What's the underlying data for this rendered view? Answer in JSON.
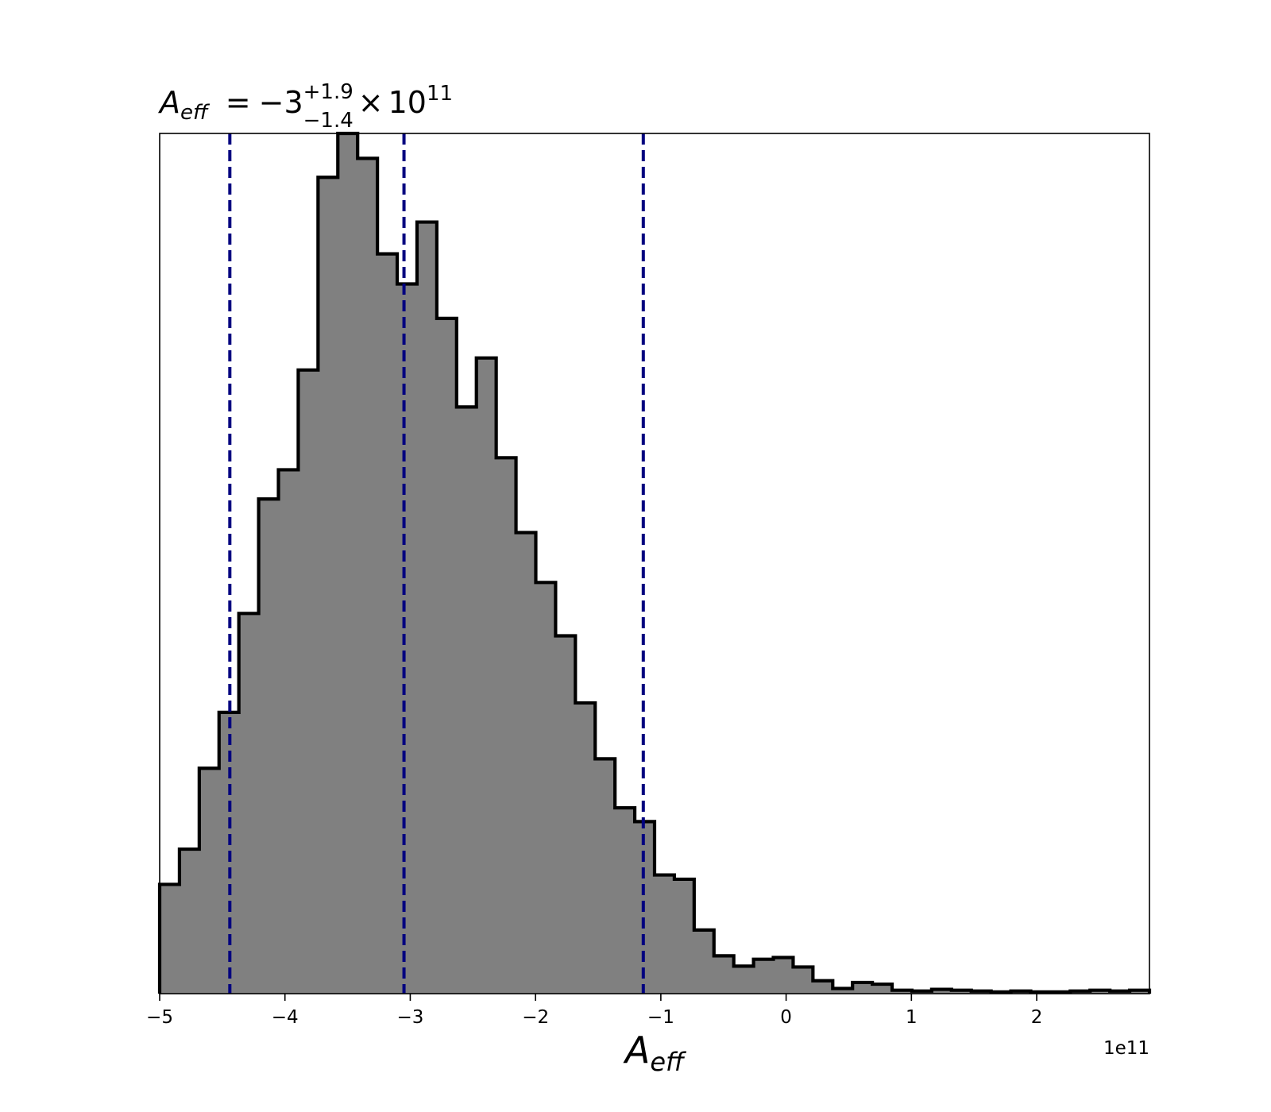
{
  "chart_data": {
    "type": "histogram",
    "title": {
      "symbol": "A",
      "symbol_sub": "eff",
      "equals": "=",
      "median": "−3",
      "upper": "+1.9",
      "lower": "−1.4",
      "times": "×",
      "base": "10",
      "exponent": "11"
    },
    "xlabel": {
      "symbol": "A",
      "symbol_sub": "eff"
    },
    "ylabel": "",
    "x_offset_label": "1e11",
    "xlim": [
      -5.0,
      2.9
    ],
    "ylim": [
      0,
      1.0
    ],
    "x_ticks": [
      -5,
      -4,
      -3,
      -2,
      -1,
      0,
      1,
      2
    ],
    "x_tick_labels": [
      "−5",
      "−4",
      "−3",
      "−2",
      "−1",
      "0",
      "1",
      "2"
    ],
    "y_ticks_shown": false,
    "grid": false,
    "quantile_lines": [
      -4.44,
      -3.05,
      -1.14
    ],
    "quantile_line_color": "#00007f",
    "fill_color": "#808080",
    "edge_color": "#000000",
    "bin_edges": [
      -5.0,
      -4.842,
      -4.684,
      -4.526,
      -4.368,
      -4.21,
      -4.052,
      -3.894,
      -3.736,
      -3.578,
      -3.42,
      -3.262,
      -3.104,
      -2.946,
      -2.788,
      -2.63,
      -2.472,
      -2.314,
      -2.156,
      -1.998,
      -1.84,
      -1.682,
      -1.524,
      -1.366,
      -1.208,
      -1.05,
      -0.892,
      -0.734,
      -0.576,
      -0.418,
      -0.26,
      -0.102,
      0.056,
      0.214,
      0.372,
      0.53,
      0.688,
      0.846,
      1.004,
      1.162,
      1.32,
      1.478,
      1.636,
      1.794,
      1.952,
      2.11,
      2.268,
      2.426,
      2.584,
      2.742,
      2.9
    ],
    "counts": [
      0.127,
      0.168,
      0.262,
      0.327,
      0.442,
      0.575,
      0.609,
      0.725,
      0.949,
      1.0,
      0.971,
      0.86,
      0.825,
      0.897,
      0.785,
      0.682,
      0.739,
      0.623,
      0.536,
      0.478,
      0.416,
      0.338,
      0.273,
      0.216,
      0.2,
      0.138,
      0.133,
      0.074,
      0.044,
      0.032,
      0.04,
      0.042,
      0.031,
      0.015,
      0.006,
      0.013,
      0.011,
      0.004,
      0.003,
      0.005,
      0.004,
      0.003,
      0.002,
      0.003,
      0.002,
      0.002,
      0.003,
      0.004,
      0.003,
      0.004
    ]
  }
}
